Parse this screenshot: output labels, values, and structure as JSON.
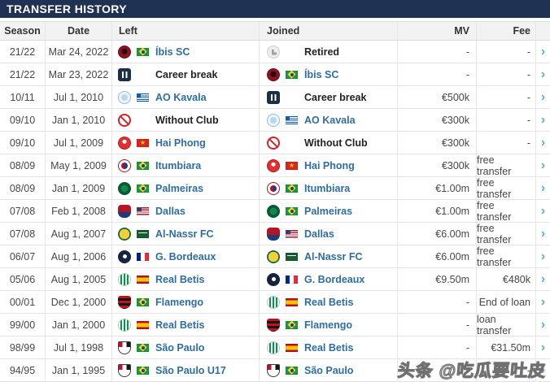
{
  "title": "TRANSFER HISTORY",
  "columns": {
    "season": "Season",
    "date": "Date",
    "left": "Left",
    "joined": "Joined",
    "mv": "MV",
    "fee": "Fee"
  },
  "ui": {
    "chevron_glyph": "›",
    "header_bar_color": "#203253",
    "link_blue": "#2e6da4",
    "chevron_blue": "#58b2dd"
  },
  "watermark": {
    "text": "头条 @吃瓜要吐皮"
  },
  "rows": [
    {
      "season": "21/22",
      "date": "Mar 24, 2022",
      "left_club": "Íbis SC",
      "left_flag": "brazil",
      "left_logo": "ibis-sc",
      "joined_club": "Retired",
      "joined_flag": "",
      "joined_logo": "retired",
      "mv": "-",
      "fee": "-"
    },
    {
      "season": "21/22",
      "date": "Mar 23, 2022",
      "left_club": "Career break",
      "left_flag": "",
      "left_logo": "career-break",
      "joined_club": "Íbis SC",
      "joined_flag": "brazil",
      "joined_logo": "ibis-sc",
      "mv": "-",
      "fee": "-"
    },
    {
      "season": "10/11",
      "date": "Jul 1, 2010",
      "left_club": "AO Kavala",
      "left_flag": "greece",
      "left_logo": "ao-kavala",
      "joined_club": "Career break",
      "joined_flag": "",
      "joined_logo": "career-break",
      "mv": "€500k",
      "fee": "-"
    },
    {
      "season": "09/10",
      "date": "Jan 1, 2010",
      "left_club": "Without Club",
      "left_flag": "",
      "left_logo": "without-club",
      "joined_club": "AO Kavala",
      "joined_flag": "greece",
      "joined_logo": "ao-kavala",
      "mv": "€300k",
      "fee": "-"
    },
    {
      "season": "09/10",
      "date": "Jul 1, 2009",
      "left_club": "Hai Phong",
      "left_flag": "vietnam",
      "left_logo": "hai-phong",
      "joined_club": "Without Club",
      "joined_flag": "",
      "joined_logo": "without-club",
      "mv": "€300k",
      "fee": "-"
    },
    {
      "season": "08/09",
      "date": "May 1, 2009",
      "left_club": "Itumbiara",
      "left_flag": "brazil",
      "left_logo": "itumbiara",
      "joined_club": "Hai Phong",
      "joined_flag": "vietnam",
      "joined_logo": "hai-phong",
      "mv": "€300k",
      "fee": "free transfer"
    },
    {
      "season": "08/09",
      "date": "Jan 1, 2009",
      "left_club": "Palmeiras",
      "left_flag": "brazil",
      "left_logo": "palmeiras",
      "joined_club": "Itumbiara",
      "joined_flag": "brazil",
      "joined_logo": "itumbiara",
      "mv": "€1.00m",
      "fee": "free transfer"
    },
    {
      "season": "07/08",
      "date": "Feb 1, 2008",
      "left_club": "Dallas",
      "left_flag": "usa",
      "left_logo": "dallas",
      "joined_club": "Palmeiras",
      "joined_flag": "brazil",
      "joined_logo": "palmeiras",
      "mv": "€1.00m",
      "fee": "free transfer"
    },
    {
      "season": "07/08",
      "date": "Aug 1, 2007",
      "left_club": "Al-Nassr FC",
      "left_flag": "saudi-arabia",
      "left_logo": "al-nassr",
      "joined_club": "Dallas",
      "joined_flag": "usa",
      "joined_logo": "dallas",
      "mv": "€6.00m",
      "fee": "free transfer"
    },
    {
      "season": "06/07",
      "date": "Aug 1, 2006",
      "left_club": "G. Bordeaux",
      "left_flag": "france",
      "left_logo": "bordeaux",
      "joined_club": "Al-Nassr FC",
      "joined_flag": "saudi-arabia",
      "joined_logo": "al-nassr",
      "mv": "€6.00m",
      "fee": "free transfer"
    },
    {
      "season": "05/06",
      "date": "Aug 1, 2005",
      "left_club": "Real Betis",
      "left_flag": "spain",
      "left_logo": "real-betis",
      "joined_club": "G. Bordeaux",
      "joined_flag": "france",
      "joined_logo": "bordeaux",
      "mv": "€9.50m",
      "fee": "€480k"
    },
    {
      "season": "00/01",
      "date": "Dec 1, 2000",
      "left_club": "Flamengo",
      "left_flag": "brazil",
      "left_logo": "flamengo",
      "joined_club": "Real Betis",
      "joined_flag": "spain",
      "joined_logo": "real-betis",
      "mv": "-",
      "fee": "End of loan"
    },
    {
      "season": "99/00",
      "date": "Jan 1, 2000",
      "left_club": "Real Betis",
      "left_flag": "spain",
      "left_logo": "real-betis",
      "joined_club": "Flamengo",
      "joined_flag": "brazil",
      "joined_logo": "flamengo",
      "mv": "-",
      "fee": "loan transfer"
    },
    {
      "season": "98/99",
      "date": "Jul 1, 1998",
      "left_club": "São Paulo",
      "left_flag": "brazil",
      "left_logo": "sao-paulo",
      "joined_club": "Real Betis",
      "joined_flag": "spain",
      "joined_logo": "real-betis",
      "mv": "-",
      "fee": "€31.50m"
    },
    {
      "season": "94/95",
      "date": "Jan 1, 1995",
      "left_club": "São Paulo U17",
      "left_flag": "brazil",
      "left_logo": "sao-paulo",
      "joined_club": "São Paulo",
      "joined_flag": "brazil",
      "joined_logo": "sao-paulo",
      "mv": "-",
      "fee": "-"
    }
  ]
}
